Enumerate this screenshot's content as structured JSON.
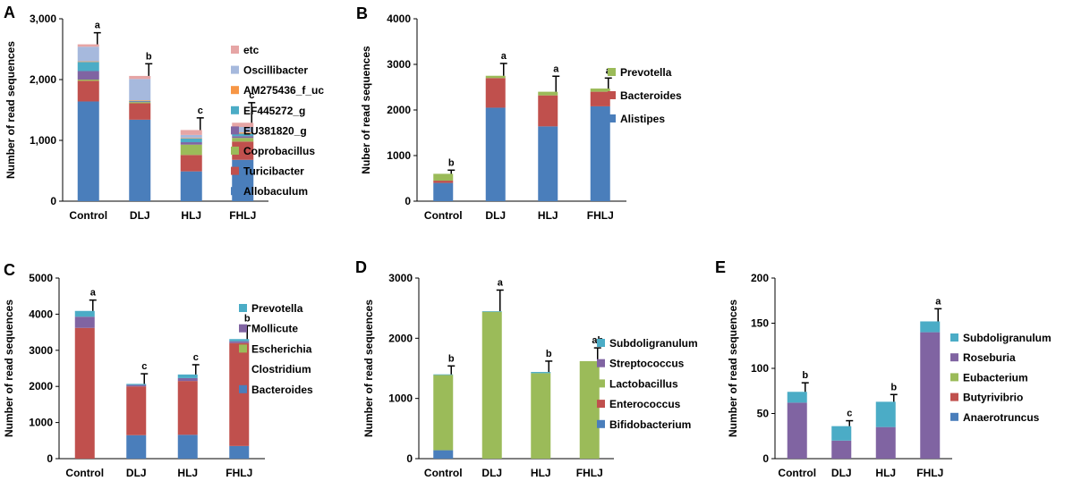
{
  "figure": {
    "description_none": ""
  },
  "colors": {
    "blue": "#4a7ebb",
    "red": "#c0504d",
    "green": "#9bbb59",
    "purple": "#8064a2",
    "teal": "#4bacc6",
    "orange": "#f79646",
    "lightblue": "#a6b9dd",
    "pink": "#e6a5a5"
  },
  "chart_data": [
    {
      "panel": "A",
      "type": "bar",
      "stacked": true,
      "ylabel": "Number of read sequences",
      "ylim": [
        0,
        3000
      ],
      "yticks": [
        0,
        1000,
        2000,
        3000
      ],
      "ytick_labels": [
        "0",
        "1,000",
        "2,000",
        "3,000"
      ],
      "categories": [
        "Control",
        "DLJ",
        "HLJ",
        "FHLJ"
      ],
      "errors": [
        190,
        200,
        200,
        330
      ],
      "significance": [
        "a",
        "b",
        "c",
        "c"
      ],
      "series": [
        {
          "name": "Allobaculum",
          "color": "#4a7ebb",
          "values": [
            1640,
            1340,
            490,
            680
          ]
        },
        {
          "name": "Turicibacter",
          "color": "#c0504d",
          "values": [
            340,
            270,
            270,
            300
          ]
        },
        {
          "name": "Coprobacillus",
          "color": "#9bbb59",
          "values": [
            20,
            20,
            170,
            60
          ]
        },
        {
          "name": "EU381820_g",
          "color": "#8064a2",
          "values": [
            140,
            10,
            40,
            30
          ]
        },
        {
          "name": "EF445272_g",
          "color": "#4bacc6",
          "values": [
            150,
            10,
            60,
            40
          ]
        },
        {
          "name": "AM275436_f_uc",
          "color": "#f79646",
          "values": [
            10,
            10,
            10,
            20
          ]
        },
        {
          "name": "Oscillibacter",
          "color": "#a6b9dd",
          "values": [
            240,
            350,
            50,
            90
          ]
        },
        {
          "name": "etc",
          "color": "#e6a5a5",
          "values": [
            40,
            50,
            80,
            70
          ]
        }
      ],
      "legend_order": [
        "etc",
        "Oscillibacter",
        "AM275436_f_uc",
        "EF445272_g",
        "EU381820_g",
        "Coprobacillus",
        "Turicibacter",
        "Allobaculum"
      ]
    },
    {
      "panel": "B",
      "type": "bar",
      "stacked": true,
      "ylabel": "Nuber of read sequences",
      "ylim": [
        0,
        4000
      ],
      "yticks": [
        0,
        1000,
        2000,
        3000,
        4000
      ],
      "ytick_labels": [
        "0",
        "1000",
        "2000",
        "3000",
        "4000"
      ],
      "categories": [
        "Control",
        "DLJ",
        "HLJ",
        "FHLJ"
      ],
      "errors": [
        80,
        270,
        340,
        230
      ],
      "significance": [
        "b",
        "a",
        "a",
        "a"
      ],
      "series": [
        {
          "name": "Alistipes",
          "color": "#4a7ebb",
          "values": [
            400,
            2050,
            1640,
            2080
          ]
        },
        {
          "name": "Bacteroides",
          "color": "#c0504d",
          "values": [
            50,
            650,
            680,
            320
          ]
        },
        {
          "name": "Prevotella",
          "color": "#9bbb59",
          "values": [
            150,
            50,
            80,
            70
          ]
        }
      ],
      "legend_order": [
        "Prevotella",
        "Bacteroides",
        "Alistipes"
      ]
    },
    {
      "panel": "C",
      "type": "bar",
      "stacked": true,
      "ylabel": "Number of read sequences",
      "ylim": [
        0,
        5000
      ],
      "yticks": [
        0,
        1000,
        2000,
        3000,
        4000,
        5000
      ],
      "ytick_labels": [
        "0",
        "1000",
        "2000",
        "3000",
        "4000",
        "5000"
      ],
      "categories": [
        "Control",
        "DLJ",
        "HLJ",
        "FHLJ"
      ],
      "errors": [
        300,
        280,
        270,
        370
      ],
      "significance": [
        "a",
        "c",
        "c",
        "b"
      ],
      "series": [
        {
          "name": "Bacteroides",
          "color": "#4a7ebb",
          "values": [
            0,
            650,
            660,
            350
          ]
        },
        {
          "name": "Clostridium",
          "color": "#c0504d",
          "values": [
            3620,
            1350,
            1490,
            2850
          ]
        },
        {
          "name": "Escherichia",
          "color": "#9bbb59",
          "values": [
            0,
            0,
            0,
            0
          ]
        },
        {
          "name": "Mollicute",
          "color": "#8064a2",
          "values": [
            310,
            40,
            80,
            50
          ]
        },
        {
          "name": "Prevotella",
          "color": "#4bacc6",
          "values": [
            160,
            30,
            100,
            60
          ]
        }
      ],
      "legend_order": [
        "Prevotella",
        "Mollicute",
        "Escherichia",
        "Clostridium",
        "Bacteroides"
      ]
    },
    {
      "panel": "D",
      "type": "bar",
      "stacked": true,
      "ylabel": "Number of read sequences",
      "ylim": [
        0,
        3000
      ],
      "yticks": [
        0,
        1000,
        2000,
        3000
      ],
      "ytick_labels": [
        "0",
        "1000",
        "2000",
        "3000"
      ],
      "categories": [
        "Control",
        "DLJ",
        "HLJ",
        "FHLJ"
      ],
      "errors": [
        140,
        350,
        180,
        220
      ],
      "significance": [
        "b",
        "a",
        "b",
        "ab"
      ],
      "series": [
        {
          "name": "Bifidobacterium",
          "color": "#4a7ebb",
          "values": [
            140,
            0,
            0,
            0
          ]
        },
        {
          "name": "Enterococcus",
          "color": "#c0504d",
          "values": [
            0,
            0,
            0,
            0
          ]
        },
        {
          "name": "Lactobacillus",
          "color": "#9bbb59",
          "values": [
            1250,
            2440,
            1420,
            1620
          ]
        },
        {
          "name": "Streptococcus",
          "color": "#8064a2",
          "values": [
            0,
            0,
            0,
            0
          ]
        },
        {
          "name": "Subdoligranulum",
          "color": "#4bacc6",
          "values": [
            10,
            10,
            20,
            0
          ]
        }
      ],
      "legend_order": [
        "Subdoligranulum",
        "Streptococcus",
        "Lactobacillus",
        "Enterococcus",
        "Bifidobacterium"
      ]
    },
    {
      "panel": "E",
      "type": "bar",
      "stacked": true,
      "ylabel": "Number of read sequences",
      "ylim": [
        0,
        200
      ],
      "yticks": [
        0,
        50,
        100,
        150,
        200
      ],
      "ytick_labels": [
        "0",
        "50",
        "100",
        "150",
        "200"
      ],
      "categories": [
        "Control",
        "DLJ",
        "HLJ",
        "FHLJ"
      ],
      "errors": [
        10,
        6,
        8,
        14
      ],
      "significance": [
        "b",
        "c",
        "b",
        "a"
      ],
      "series": [
        {
          "name": "Anaerotruncus",
          "color": "#4a7ebb",
          "values": [
            0,
            0,
            0,
            0
          ]
        },
        {
          "name": "Butyrivibrio",
          "color": "#c0504d",
          "values": [
            0,
            0,
            0,
            0
          ]
        },
        {
          "name": "Eubacterium",
          "color": "#9bbb59",
          "values": [
            0,
            0,
            0,
            0
          ]
        },
        {
          "name": "Roseburia",
          "color": "#8064a2",
          "values": [
            62,
            20,
            35,
            140
          ]
        },
        {
          "name": "Subdoligranulum",
          "color": "#4bacc6",
          "values": [
            12,
            16,
            28,
            12
          ]
        }
      ],
      "legend_order": [
        "Subdoligranulum",
        "Roseburia",
        "Eubacterium",
        "Butyrivibrio",
        "Anaerotruncus"
      ]
    }
  ]
}
